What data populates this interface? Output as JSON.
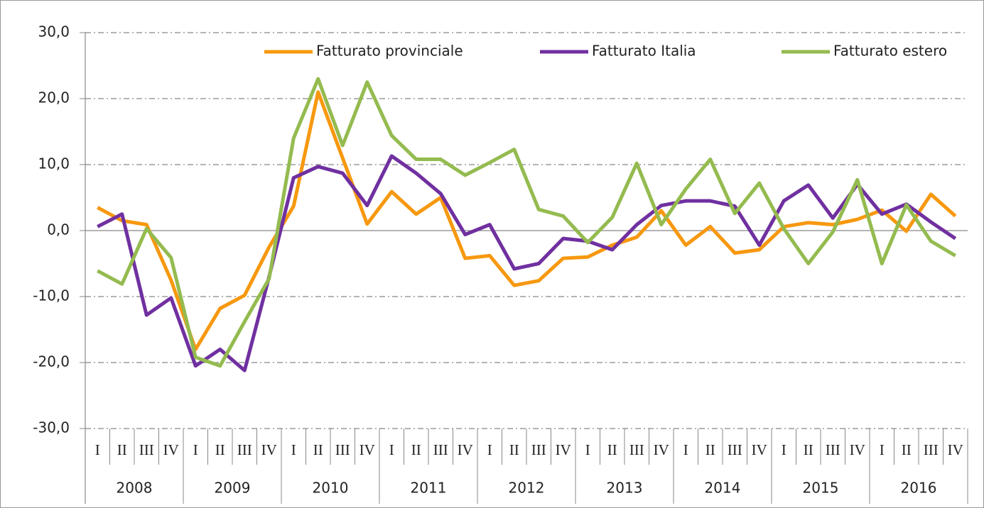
{
  "chart_data": {
    "type": "line",
    "categories": [
      "I",
      "II",
      "III",
      "IV",
      "I",
      "II",
      "III",
      "IV",
      "I",
      "II",
      "III",
      "IV",
      "I",
      "II",
      "III",
      "IV",
      "I",
      "II",
      "III",
      "IV",
      "I",
      "II",
      "III",
      "IV",
      "I",
      "II",
      "III",
      "IV",
      "I",
      "II",
      "III",
      "IV",
      "I",
      "II",
      "III",
      "IV"
    ],
    "groups": [
      "2008",
      "2009",
      "2010",
      "2011",
      "2012",
      "2013",
      "2014",
      "2015",
      "2016"
    ],
    "series": [
      {
        "name": "Fatturato provinciale",
        "color": "#f7980f",
        "values": [
          3.5,
          1.5,
          0.9,
          -7.5,
          -18.0,
          -11.8,
          -9.8,
          -2.5,
          3.7,
          21.0,
          11.0,
          1.0,
          5.9,
          2.5,
          5.0,
          -4.2,
          -3.8,
          -8.3,
          -7.6,
          -4.2,
          -4.0,
          -2.2,
          -1.0,
          3.0,
          -2.2,
          0.6,
          -3.4,
          -2.9,
          0.6,
          1.2,
          0.9,
          1.7,
          3.1,
          -0.1,
          5.5,
          2.2
        ]
      },
      {
        "name": "Fatturato Italia",
        "color": "#7030a0",
        "values": [
          0.6,
          2.5,
          -12.8,
          -10.2,
          -20.5,
          -18.0,
          -21.2,
          -7.0,
          8.0,
          9.7,
          8.7,
          3.8,
          11.3,
          8.7,
          5.6,
          -0.6,
          0.9,
          -5.8,
          -5.0,
          -1.2,
          -1.6,
          -2.9,
          0.9,
          3.8,
          4.5,
          4.5,
          3.7,
          -2.2,
          4.5,
          6.9,
          1.9,
          7.0,
          2.5,
          4.0,
          1.3,
          -1.2
        ]
      },
      {
        "name": "Fatturato estero",
        "color": "#94bb4f",
        "values": [
          -6.1,
          -8.1,
          0.3,
          -4.1,
          -19.2,
          -20.5,
          -13.8,
          -7.3,
          14.0,
          23.0,
          12.9,
          22.5,
          14.4,
          10.8,
          10.8,
          8.4,
          10.3,
          12.3,
          3.2,
          2.2,
          -1.8,
          2.0,
          10.2,
          0.9,
          6.3,
          10.8,
          2.6,
          7.2,
          0.3,
          -5.0,
          -0.2,
          7.7,
          -5.0,
          3.9,
          -1.6,
          -3.8
        ]
      }
    ],
    "ylim": [
      -30,
      30
    ],
    "yticks": [
      {
        "value": -30,
        "label": "-30,0"
      },
      {
        "value": -20,
        "label": "-20,0"
      },
      {
        "value": -10,
        "label": "-10,0"
      },
      {
        "value": 0,
        "label": "0,0"
      },
      {
        "value": 10,
        "label": "10,0"
      },
      {
        "value": 20,
        "label": "20,0"
      },
      {
        "value": 30,
        "label": "30,0"
      }
    ],
    "grid": true,
    "legend": "top"
  }
}
